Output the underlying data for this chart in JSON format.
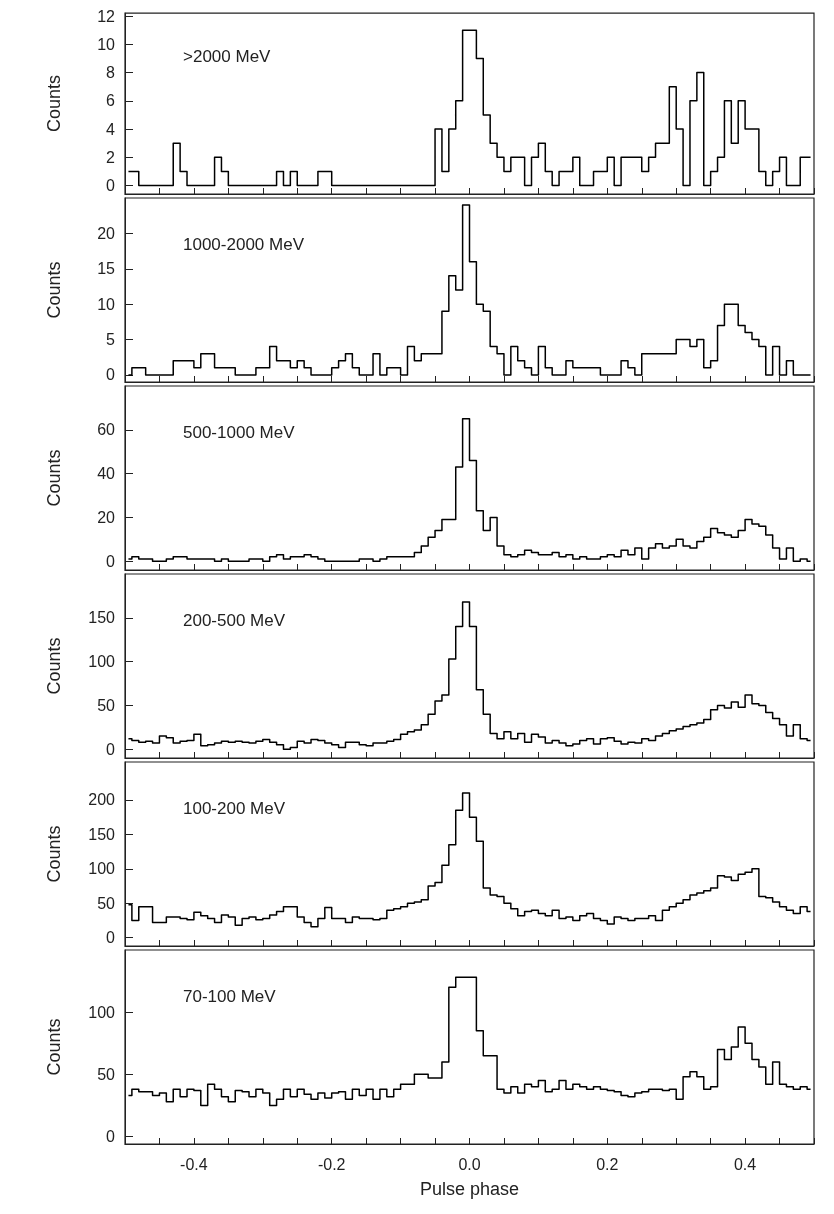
{
  "chart_data": [
    {
      "type": "step",
      "ylabel": "Counts",
      "annotations": [
        ">2000 MeV"
      ],
      "xlim": [
        -0.5,
        0.5
      ],
      "xticks": [
        {
          "value": -0.5,
          "label": null
        },
        {
          "value": -0.45,
          "label": null
        },
        {
          "value": -0.4,
          "label": null
        },
        {
          "value": -0.35,
          "label": null
        },
        {
          "value": -0.3,
          "label": null
        },
        {
          "value": -0.25,
          "label": null
        },
        {
          "value": -0.2,
          "label": null
        },
        {
          "value": -0.15,
          "label": null
        },
        {
          "value": -0.1,
          "label": null
        },
        {
          "value": -0.05,
          "label": null
        },
        {
          "value": 0,
          "label": null
        },
        {
          "value": 0.05,
          "label": null
        },
        {
          "value": 0.1,
          "label": null
        },
        {
          "value": 0.15,
          "label": null
        },
        {
          "value": 0.2,
          "label": null
        },
        {
          "value": 0.25,
          "label": null
        },
        {
          "value": 0.3,
          "label": null
        },
        {
          "value": 0.35,
          "label": null
        },
        {
          "value": 0.4,
          "label": null
        },
        {
          "value": 0.45,
          "label": null
        },
        {
          "value": 0.5,
          "label": null
        }
      ],
      "ylim": [
        -0.6,
        12.2
      ],
      "yticks": [
        0,
        2,
        4,
        6,
        8,
        10,
        12
      ],
      "tick_labels": "y",
      "color": "#000000",
      "x": [
        -0.495,
        -0.485,
        -0.475,
        -0.465,
        -0.455,
        -0.445,
        -0.435,
        -0.425,
        -0.415,
        -0.405,
        -0.395,
        -0.385,
        -0.375,
        -0.365,
        -0.355,
        -0.345,
        -0.335,
        -0.325,
        -0.315,
        -0.305,
        -0.295,
        -0.285,
        -0.275,
        -0.265,
        -0.255,
        -0.245,
        -0.235,
        -0.225,
        -0.215,
        -0.205,
        -0.195,
        -0.185,
        -0.175,
        -0.165,
        -0.155,
        -0.145,
        -0.135,
        -0.125,
        -0.115,
        -0.105,
        -0.095,
        -0.085,
        -0.075,
        -0.065,
        -0.055,
        -0.045,
        -0.035,
        -0.025,
        -0.015,
        -0.005,
        0.005,
        0.015,
        0.025,
        0.035,
        0.045,
        0.055,
        0.065,
        0.075,
        0.085,
        0.095,
        0.105,
        0.115,
        0.125,
        0.135,
        0.145,
        0.155,
        0.165,
        0.175,
        0.185,
        0.195,
        0.205,
        0.215,
        0.225,
        0.235,
        0.245,
        0.255,
        0.265,
        0.275,
        0.285,
        0.295,
        0.305,
        0.315,
        0.325,
        0.335,
        0.345,
        0.355,
        0.365,
        0.375,
        0.385,
        0.395,
        0.405,
        0.415,
        0.425,
        0.435,
        0.445,
        0.455,
        0.465,
        0.475,
        0.485,
        0.495
      ],
      "values": [
        1,
        1,
        0,
        0,
        0,
        0,
        0,
        3,
        1,
        0,
        0,
        0,
        0,
        2,
        1,
        0,
        0,
        0,
        0,
        0,
        0,
        0,
        1,
        0,
        1,
        0,
        0,
        0,
        1,
        1,
        0,
        0,
        0,
        0,
        0,
        0,
        0,
        0,
        0,
        0,
        0,
        0,
        0,
        0,
        0,
        4,
        1,
        4,
        6,
        11,
        11,
        9,
        5,
        3,
        2,
        1,
        2,
        2,
        0,
        2,
        3,
        1,
        0,
        1,
        1,
        2,
        0,
        0,
        1,
        1,
        2,
        0,
        2,
        2,
        2,
        1,
        2,
        3,
        3,
        7,
        4,
        0,
        6,
        8,
        0,
        1,
        2,
        6,
        3,
        6,
        4,
        4,
        1,
        0,
        1,
        2,
        0,
        0,
        2,
        2
      ]
    },
    {
      "type": "step",
      "ylabel": "Counts",
      "annotations": [
        "1000-2000 MeV"
      ],
      "xlim": [
        -0.5,
        0.5
      ],
      "xticks": [
        {
          "value": -0.5,
          "label": null
        },
        {
          "value": -0.45,
          "label": null
        },
        {
          "value": -0.4,
          "label": null
        },
        {
          "value": -0.35,
          "label": null
        },
        {
          "value": -0.3,
          "label": null
        },
        {
          "value": -0.25,
          "label": null
        },
        {
          "value": -0.2,
          "label": null
        },
        {
          "value": -0.15,
          "label": null
        },
        {
          "value": -0.1,
          "label": null
        },
        {
          "value": -0.05,
          "label": null
        },
        {
          "value": 0,
          "label": null
        },
        {
          "value": 0.05,
          "label": null
        },
        {
          "value": 0.1,
          "label": null
        },
        {
          "value": 0.15,
          "label": null
        },
        {
          "value": 0.2,
          "label": null
        },
        {
          "value": 0.25,
          "label": null
        },
        {
          "value": 0.3,
          "label": null
        },
        {
          "value": 0.35,
          "label": null
        },
        {
          "value": 0.4,
          "label": null
        },
        {
          "value": 0.45,
          "label": null
        },
        {
          "value": 0.5,
          "label": null
        }
      ],
      "ylim": [
        -1,
        25
      ],
      "yticks": [
        0,
        5,
        10,
        15,
        20
      ],
      "tick_labels": "y",
      "color": "#000000",
      "x": [
        -0.495,
        -0.485,
        -0.475,
        -0.465,
        -0.455,
        -0.445,
        -0.435,
        -0.425,
        -0.415,
        -0.405,
        -0.395,
        -0.385,
        -0.375,
        -0.365,
        -0.355,
        -0.345,
        -0.335,
        -0.325,
        -0.315,
        -0.305,
        -0.295,
        -0.285,
        -0.275,
        -0.265,
        -0.255,
        -0.245,
        -0.235,
        -0.225,
        -0.215,
        -0.205,
        -0.195,
        -0.185,
        -0.175,
        -0.165,
        -0.155,
        -0.145,
        -0.135,
        -0.125,
        -0.115,
        -0.105,
        -0.095,
        -0.085,
        -0.075,
        -0.065,
        -0.055,
        -0.045,
        -0.035,
        -0.025,
        -0.015,
        -0.005,
        0.005,
        0.015,
        0.025,
        0.035,
        0.045,
        0.055,
        0.065,
        0.075,
        0.085,
        0.095,
        0.105,
        0.115,
        0.125,
        0.135,
        0.145,
        0.155,
        0.165,
        0.175,
        0.185,
        0.195,
        0.205,
        0.215,
        0.225,
        0.235,
        0.245,
        0.255,
        0.265,
        0.275,
        0.285,
        0.295,
        0.305,
        0.315,
        0.325,
        0.335,
        0.345,
        0.355,
        0.365,
        0.375,
        0.385,
        0.395,
        0.405,
        0.415,
        0.425,
        0.435,
        0.445,
        0.455,
        0.465,
        0.475,
        0.485,
        0.495
      ],
      "values": [
        0,
        1,
        1,
        0,
        0,
        0,
        0,
        2,
        2,
        2,
        1,
        3,
        3,
        1,
        1,
        1,
        0,
        0,
        0,
        1,
        1,
        4,
        2,
        2,
        1,
        2,
        1,
        0,
        0,
        0,
        1,
        2,
        3,
        1,
        0,
        0,
        3,
        0,
        1,
        1,
        0,
        4,
        2,
        3,
        3,
        3,
        9,
        14,
        12,
        24,
        16,
        10,
        9,
        4,
        3,
        0,
        4,
        2,
        1,
        0,
        4,
        1,
        0,
        0,
        2,
        1,
        1,
        1,
        1,
        0,
        0,
        0,
        2,
        1,
        0,
        3,
        3,
        3,
        3,
        3,
        5,
        5,
        4,
        5,
        1,
        2,
        7,
        10,
        10,
        7,
        6,
        5,
        4,
        0,
        4,
        0,
        2,
        0,
        0,
        0
      ]
    },
    {
      "type": "step",
      "ylabel": "Counts",
      "annotations": [
        "500-1000 MeV"
      ],
      "xlim": [
        -0.5,
        0.5
      ],
      "xticks": [
        {
          "value": -0.5,
          "label": null
        },
        {
          "value": -0.45,
          "label": null
        },
        {
          "value": -0.4,
          "label": null
        },
        {
          "value": -0.35,
          "label": null
        },
        {
          "value": -0.3,
          "label": null
        },
        {
          "value": -0.25,
          "label": null
        },
        {
          "value": -0.2,
          "label": null
        },
        {
          "value": -0.15,
          "label": null
        },
        {
          "value": -0.1,
          "label": null
        },
        {
          "value": -0.05,
          "label": null
        },
        {
          "value": 0,
          "label": null
        },
        {
          "value": 0.05,
          "label": null
        },
        {
          "value": 0.1,
          "label": null
        },
        {
          "value": 0.15,
          "label": null
        },
        {
          "value": 0.2,
          "label": null
        },
        {
          "value": 0.25,
          "label": null
        },
        {
          "value": 0.3,
          "label": null
        },
        {
          "value": 0.35,
          "label": null
        },
        {
          "value": 0.4,
          "label": null
        },
        {
          "value": 0.45,
          "label": null
        },
        {
          "value": 0.5,
          "label": null
        }
      ],
      "ylim": [
        -4,
        80
      ],
      "yticks": [
        0,
        20,
        40,
        60
      ],
      "tick_labels": "y",
      "color": "#000000",
      "x": [
        -0.495,
        -0.485,
        -0.475,
        -0.465,
        -0.455,
        -0.445,
        -0.435,
        -0.425,
        -0.415,
        -0.405,
        -0.395,
        -0.385,
        -0.375,
        -0.365,
        -0.355,
        -0.345,
        -0.335,
        -0.325,
        -0.315,
        -0.305,
        -0.295,
        -0.285,
        -0.275,
        -0.265,
        -0.255,
        -0.245,
        -0.235,
        -0.225,
        -0.215,
        -0.205,
        -0.195,
        -0.185,
        -0.175,
        -0.165,
        -0.155,
        -0.145,
        -0.135,
        -0.125,
        -0.115,
        -0.105,
        -0.095,
        -0.085,
        -0.075,
        -0.065,
        -0.055,
        -0.045,
        -0.035,
        -0.025,
        -0.015,
        -0.005,
        0.005,
        0.015,
        0.025,
        0.035,
        0.045,
        0.055,
        0.065,
        0.075,
        0.085,
        0.095,
        0.105,
        0.115,
        0.125,
        0.135,
        0.145,
        0.155,
        0.165,
        0.175,
        0.185,
        0.195,
        0.205,
        0.215,
        0.225,
        0.235,
        0.245,
        0.255,
        0.265,
        0.275,
        0.285,
        0.295,
        0.305,
        0.315,
        0.325,
        0.335,
        0.345,
        0.355,
        0.365,
        0.375,
        0.385,
        0.395,
        0.405,
        0.415,
        0.425,
        0.435,
        0.445,
        0.455,
        0.465,
        0.475,
        0.485,
        0.495
      ],
      "values": [
        1,
        2,
        1,
        1,
        0,
        0,
        1,
        2,
        2,
        1,
        1,
        1,
        1,
        0,
        1,
        0,
        0,
        0,
        1,
        1,
        0,
        2,
        3,
        1,
        2,
        2,
        3,
        2,
        1,
        0,
        0,
        0,
        0,
        0,
        1,
        1,
        0,
        1,
        2,
        2,
        2,
        2,
        4,
        7,
        11,
        14,
        19,
        19,
        43,
        65,
        46,
        23,
        14,
        20,
        7,
        3,
        2,
        3,
        5,
        4,
        3,
        3,
        4,
        2,
        3,
        1,
        2,
        1,
        1,
        2,
        3,
        2,
        5,
        3,
        6,
        1,
        6,
        8,
        6,
        7,
        10,
        7,
        6,
        9,
        11,
        15,
        13,
        12,
        11,
        14,
        19,
        17,
        16,
        12,
        6,
        1,
        6,
        0,
        1,
        0
      ]
    },
    {
      "type": "step",
      "ylabel": "Counts",
      "annotations": [
        "200-500 MeV"
      ],
      "xlim": [
        -0.5,
        0.5
      ],
      "xticks": [
        {
          "value": -0.5,
          "label": null
        },
        {
          "value": -0.45,
          "label": null
        },
        {
          "value": -0.4,
          "label": null
        },
        {
          "value": -0.35,
          "label": null
        },
        {
          "value": -0.3,
          "label": null
        },
        {
          "value": -0.25,
          "label": null
        },
        {
          "value": -0.2,
          "label": null
        },
        {
          "value": -0.15,
          "label": null
        },
        {
          "value": -0.1,
          "label": null
        },
        {
          "value": -0.05,
          "label": null
        },
        {
          "value": 0,
          "label": null
        },
        {
          "value": 0.05,
          "label": null
        },
        {
          "value": 0.1,
          "label": null
        },
        {
          "value": 0.15,
          "label": null
        },
        {
          "value": 0.2,
          "label": null
        },
        {
          "value": 0.25,
          "label": null
        },
        {
          "value": 0.3,
          "label": null
        },
        {
          "value": 0.35,
          "label": null
        },
        {
          "value": 0.4,
          "label": null
        },
        {
          "value": 0.45,
          "label": null
        },
        {
          "value": 0.5,
          "label": null
        }
      ],
      "ylim": [
        -10,
        200
      ],
      "yticks": [
        0,
        50,
        100,
        150
      ],
      "tick_labels": "y",
      "color": "#000000",
      "x": [
        -0.495,
        -0.485,
        -0.475,
        -0.465,
        -0.455,
        -0.445,
        -0.435,
        -0.425,
        -0.415,
        -0.405,
        -0.395,
        -0.385,
        -0.375,
        -0.365,
        -0.355,
        -0.345,
        -0.335,
        -0.325,
        -0.315,
        -0.305,
        -0.295,
        -0.285,
        -0.275,
        -0.265,
        -0.255,
        -0.245,
        -0.235,
        -0.225,
        -0.215,
        -0.205,
        -0.195,
        -0.185,
        -0.175,
        -0.165,
        -0.155,
        -0.145,
        -0.135,
        -0.125,
        -0.115,
        -0.105,
        -0.095,
        -0.085,
        -0.075,
        -0.065,
        -0.055,
        -0.045,
        -0.035,
        -0.025,
        -0.015,
        -0.005,
        0.005,
        0.015,
        0.025,
        0.035,
        0.045,
        0.055,
        0.065,
        0.075,
        0.085,
        0.095,
        0.105,
        0.115,
        0.125,
        0.135,
        0.145,
        0.155,
        0.165,
        0.175,
        0.185,
        0.195,
        0.205,
        0.215,
        0.225,
        0.235,
        0.245,
        0.255,
        0.265,
        0.275,
        0.285,
        0.295,
        0.305,
        0.315,
        0.325,
        0.335,
        0.345,
        0.355,
        0.365,
        0.375,
        0.385,
        0.395,
        0.405,
        0.415,
        0.425,
        0.435,
        0.445,
        0.455,
        0.465,
        0.475,
        0.485,
        0.495
      ],
      "values": [
        12,
        10,
        8,
        9,
        7,
        15,
        13,
        7,
        9,
        10,
        17,
        4,
        5,
        7,
        9,
        8,
        9,
        8,
        7,
        9,
        11,
        8,
        5,
        0,
        2,
        9,
        7,
        11,
        10,
        7,
        5,
        2,
        8,
        8,
        5,
        4,
        7,
        7,
        9,
        11,
        17,
        20,
        22,
        28,
        40,
        55,
        62,
        103,
        140,
        168,
        140,
        68,
        40,
        18,
        12,
        20,
        12,
        18,
        8,
        17,
        14,
        7,
        10,
        7,
        4,
        6,
        10,
        12,
        6,
        12,
        13,
        9,
        6,
        8,
        7,
        12,
        10,
        15,
        18,
        21,
        23,
        26,
        28,
        30,
        34,
        45,
        50,
        47,
        54,
        48,
        62,
        52,
        50,
        42,
        35,
        28,
        15,
        28,
        12,
        10
      ]
    },
    {
      "type": "step",
      "ylabel": "Counts",
      "annotations": [
        "100-200 MeV"
      ],
      "xlim": [
        -0.5,
        0.5
      ],
      "xticks": [
        {
          "value": -0.5,
          "label": null
        },
        {
          "value": -0.45,
          "label": null
        },
        {
          "value": -0.4,
          "label": null
        },
        {
          "value": -0.35,
          "label": null
        },
        {
          "value": -0.3,
          "label": null
        },
        {
          "value": -0.25,
          "label": null
        },
        {
          "value": -0.2,
          "label": null
        },
        {
          "value": -0.15,
          "label": null
        },
        {
          "value": -0.1,
          "label": null
        },
        {
          "value": -0.05,
          "label": null
        },
        {
          "value": 0,
          "label": null
        },
        {
          "value": 0.05,
          "label": null
        },
        {
          "value": 0.1,
          "label": null
        },
        {
          "value": 0.15,
          "label": null
        },
        {
          "value": 0.2,
          "label": null
        },
        {
          "value": 0.25,
          "label": null
        },
        {
          "value": 0.3,
          "label": null
        },
        {
          "value": 0.35,
          "label": null
        },
        {
          "value": 0.4,
          "label": null
        },
        {
          "value": 0.45,
          "label": null
        },
        {
          "value": 0.5,
          "label": null
        }
      ],
      "ylim": [
        -12,
        255
      ],
      "yticks": [
        0,
        50,
        100,
        150,
        200
      ],
      "tick_labels": "y",
      "color": "#000000",
      "x": [
        -0.495,
        -0.485,
        -0.475,
        -0.465,
        -0.455,
        -0.445,
        -0.435,
        -0.425,
        -0.415,
        -0.405,
        -0.395,
        -0.385,
        -0.375,
        -0.365,
        -0.355,
        -0.345,
        -0.335,
        -0.325,
        -0.315,
        -0.305,
        -0.295,
        -0.285,
        -0.275,
        -0.265,
        -0.255,
        -0.245,
        -0.235,
        -0.225,
        -0.215,
        -0.205,
        -0.195,
        -0.185,
        -0.175,
        -0.165,
        -0.155,
        -0.145,
        -0.135,
        -0.125,
        -0.115,
        -0.105,
        -0.095,
        -0.085,
        -0.075,
        -0.065,
        -0.055,
        -0.045,
        -0.035,
        -0.025,
        -0.015,
        -0.005,
        0.005,
        0.015,
        0.025,
        0.035,
        0.045,
        0.055,
        0.065,
        0.075,
        0.085,
        0.095,
        0.105,
        0.115,
        0.125,
        0.135,
        0.145,
        0.155,
        0.165,
        0.175,
        0.185,
        0.195,
        0.205,
        0.215,
        0.225,
        0.235,
        0.245,
        0.255,
        0.265,
        0.275,
        0.285,
        0.295,
        0.305,
        0.315,
        0.325,
        0.335,
        0.345,
        0.355,
        0.365,
        0.375,
        0.385,
        0.395,
        0.405,
        0.415,
        0.425,
        0.435,
        0.445,
        0.455,
        0.465,
        0.475,
        0.485,
        0.495
      ],
      "values": [
        48,
        25,
        45,
        45,
        22,
        22,
        30,
        30,
        28,
        26,
        37,
        32,
        28,
        22,
        33,
        30,
        18,
        28,
        30,
        26,
        28,
        33,
        38,
        45,
        45,
        30,
        22,
        16,
        28,
        44,
        28,
        28,
        22,
        30,
        28,
        28,
        26,
        28,
        40,
        42,
        45,
        50,
        52,
        55,
        75,
        80,
        105,
        135,
        185,
        210,
        175,
        140,
        72,
        62,
        60,
        50,
        42,
        32,
        38,
        40,
        35,
        32,
        40,
        28,
        30,
        25,
        32,
        35,
        28,
        25,
        20,
        30,
        28,
        25,
        28,
        28,
        32,
        25,
        40,
        45,
        50,
        55,
        62,
        65,
        68,
        72,
        90,
        88,
        83,
        92,
        95,
        100,
        60,
        58,
        52,
        45,
        40,
        35,
        45,
        38
      ]
    },
    {
      "type": "step",
      "ylabel": "Counts",
      "xlabel": "Pulse phase",
      "annotations": [
        "70-100 MeV"
      ],
      "xlim": [
        -0.5,
        0.5
      ],
      "xticks": [
        {
          "value": -0.5,
          "label": null
        },
        {
          "value": -0.45,
          "label": null
        },
        -0.4,
        {
          "value": -0.35,
          "label": null
        },
        {
          "value": -0.3,
          "label": null
        },
        {
          "value": -0.25,
          "label": null
        },
        -0.2,
        {
          "value": -0.15,
          "label": null
        },
        {
          "value": -0.1,
          "label": null
        },
        {
          "value": -0.05,
          "label": null
        },
        {
          "value": 0,
          "label": "0.0"
        },
        {
          "value": 0.05,
          "label": null
        },
        {
          "value": 0.1,
          "label": null
        },
        {
          "value": 0.15,
          "label": null
        },
        0.2,
        {
          "value": 0.25,
          "label": null
        },
        {
          "value": 0.3,
          "label": null
        },
        {
          "value": 0.35,
          "label": null
        },
        0.4,
        {
          "value": 0.45,
          "label": null
        },
        {
          "value": 0.5,
          "label": null
        }
      ],
      "ylim": [
        -6,
        150
      ],
      "yticks": [
        0,
        50,
        100
      ],
      "color": "#000000",
      "x": [
        -0.495,
        -0.485,
        -0.475,
        -0.465,
        -0.455,
        -0.445,
        -0.435,
        -0.425,
        -0.415,
        -0.405,
        -0.395,
        -0.385,
        -0.375,
        -0.365,
        -0.355,
        -0.345,
        -0.335,
        -0.325,
        -0.315,
        -0.305,
        -0.295,
        -0.285,
        -0.275,
        -0.265,
        -0.255,
        -0.245,
        -0.235,
        -0.225,
        -0.215,
        -0.205,
        -0.195,
        -0.185,
        -0.175,
        -0.165,
        -0.155,
        -0.145,
        -0.135,
        -0.125,
        -0.115,
        -0.105,
        -0.095,
        -0.085,
        -0.075,
        -0.065,
        -0.055,
        -0.045,
        -0.035,
        -0.025,
        -0.015,
        -0.005,
        0.005,
        0.015,
        0.025,
        0.035,
        0.045,
        0.055,
        0.065,
        0.075,
        0.085,
        0.095,
        0.105,
        0.115,
        0.125,
        0.135,
        0.145,
        0.155,
        0.165,
        0.175,
        0.185,
        0.195,
        0.205,
        0.215,
        0.225,
        0.235,
        0.245,
        0.255,
        0.265,
        0.275,
        0.285,
        0.295,
        0.305,
        0.315,
        0.325,
        0.335,
        0.345,
        0.355,
        0.365,
        0.375,
        0.385,
        0.395,
        0.405,
        0.415,
        0.425,
        0.435,
        0.445,
        0.455,
        0.465,
        0.475,
        0.485,
        0.495
      ],
      "values": [
        33,
        38,
        36,
        36,
        33,
        35,
        28,
        38,
        32,
        38,
        37,
        25,
        42,
        38,
        32,
        28,
        37,
        36,
        32,
        38,
        35,
        25,
        30,
        38,
        32,
        38,
        34,
        30,
        35,
        31,
        35,
        36,
        30,
        38,
        33,
        38,
        30,
        38,
        32,
        38,
        42,
        42,
        50,
        50,
        47,
        47,
        60,
        120,
        128,
        128,
        128,
        85,
        65,
        65,
        38,
        35,
        40,
        35,
        42,
        40,
        45,
        36,
        38,
        45,
        38,
        42,
        40,
        38,
        40,
        38,
        37,
        36,
        33,
        32,
        35,
        36,
        38,
        38,
        37,
        38,
        30,
        48,
        52,
        48,
        38,
        40,
        70,
        62,
        72,
        88,
        75,
        62,
        56,
        42,
        60,
        42,
        40,
        38,
        40,
        38
      ]
    }
  ]
}
